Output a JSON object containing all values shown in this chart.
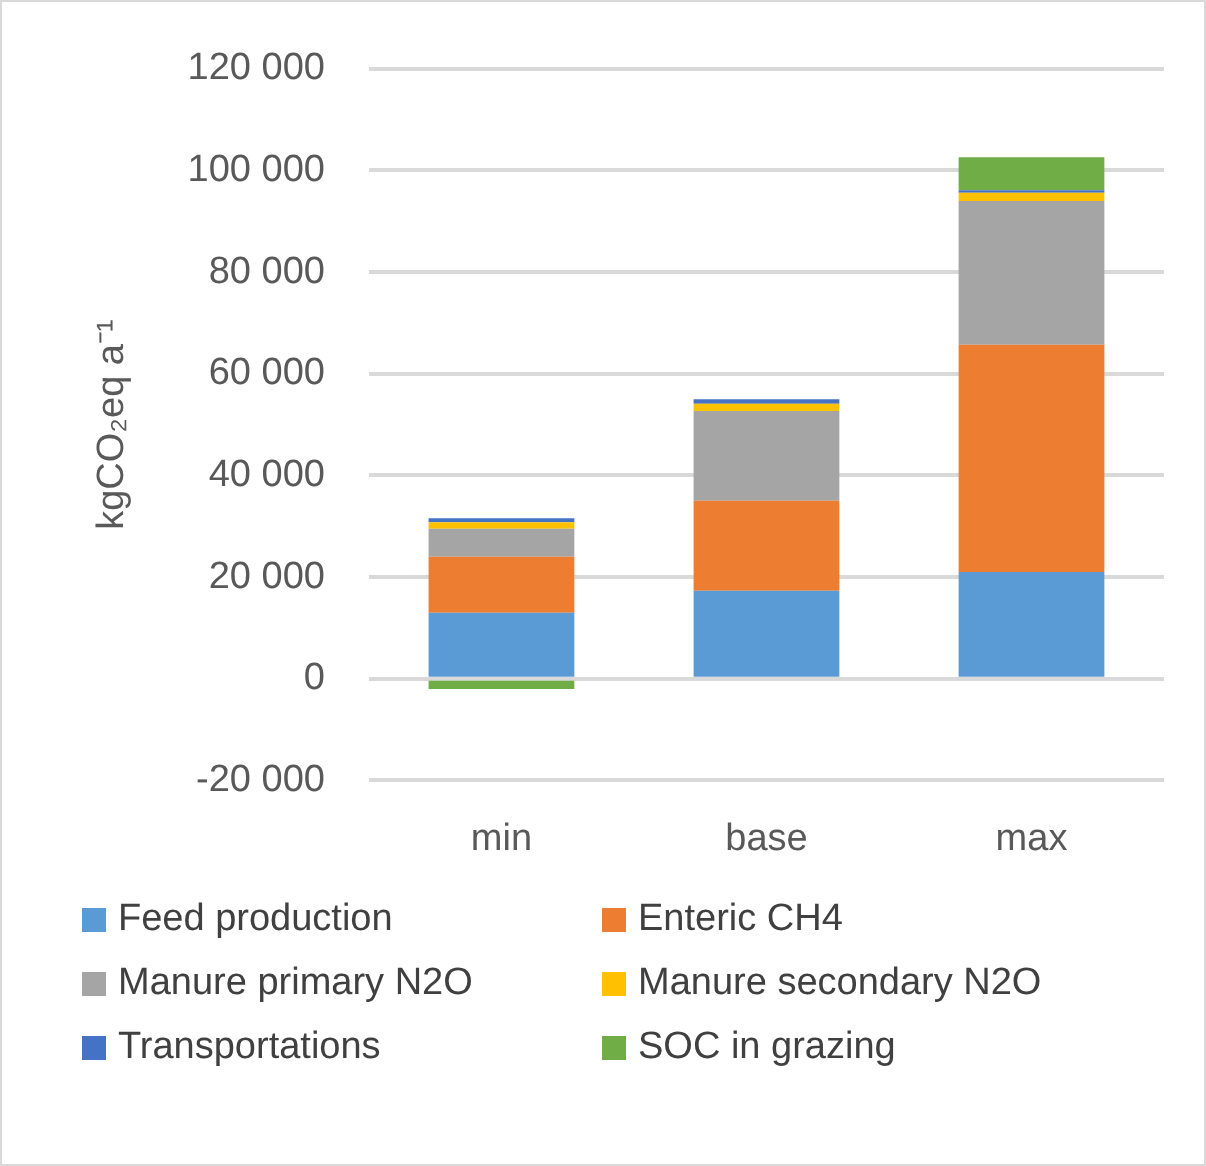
{
  "chart_data": {
    "type": "bar",
    "stacked": true,
    "ylabel": "kgCO₂eq a⁻¹",
    "categories": [
      "min",
      "base",
      "max"
    ],
    "ylim": [
      -20000,
      120000
    ],
    "yticks": [
      {
        "value": -20000,
        "label": "-20 000"
      },
      {
        "value": 0,
        "label": "0"
      },
      {
        "value": 20000,
        "label": "20 000"
      },
      {
        "value": 40000,
        "label": "40 000"
      },
      {
        "value": 60000,
        "label": "60 000"
      },
      {
        "value": 80000,
        "label": "80 000"
      },
      {
        "value": 100000,
        "label": "100 000"
      },
      {
        "value": 120000,
        "label": "120 000"
      }
    ],
    "grid": "y",
    "legend": "bottom",
    "series": [
      {
        "name": "Feed production",
        "color": "#5b9bd5",
        "values": [
          13000,
          17300,
          21000
        ]
      },
      {
        "name": "Enteric CH4",
        "color": "#ed7d31",
        "values": [
          11000,
          17700,
          44700
        ]
      },
      {
        "name": "Manure primary N2O",
        "color": "#a5a5a5",
        "values": [
          5500,
          17700,
          28300
        ]
      },
      {
        "name": "Manure secondary N2O",
        "color": "#ffc000",
        "values": [
          1300,
          1400,
          1600
        ]
      },
      {
        "name": "Transportations",
        "color": "#4472c4",
        "values": [
          800,
          900,
          500
        ]
      },
      {
        "name": "SOC in grazing",
        "color": "#70ad47",
        "values": [
          -2000,
          0,
          6500
        ]
      }
    ]
  }
}
